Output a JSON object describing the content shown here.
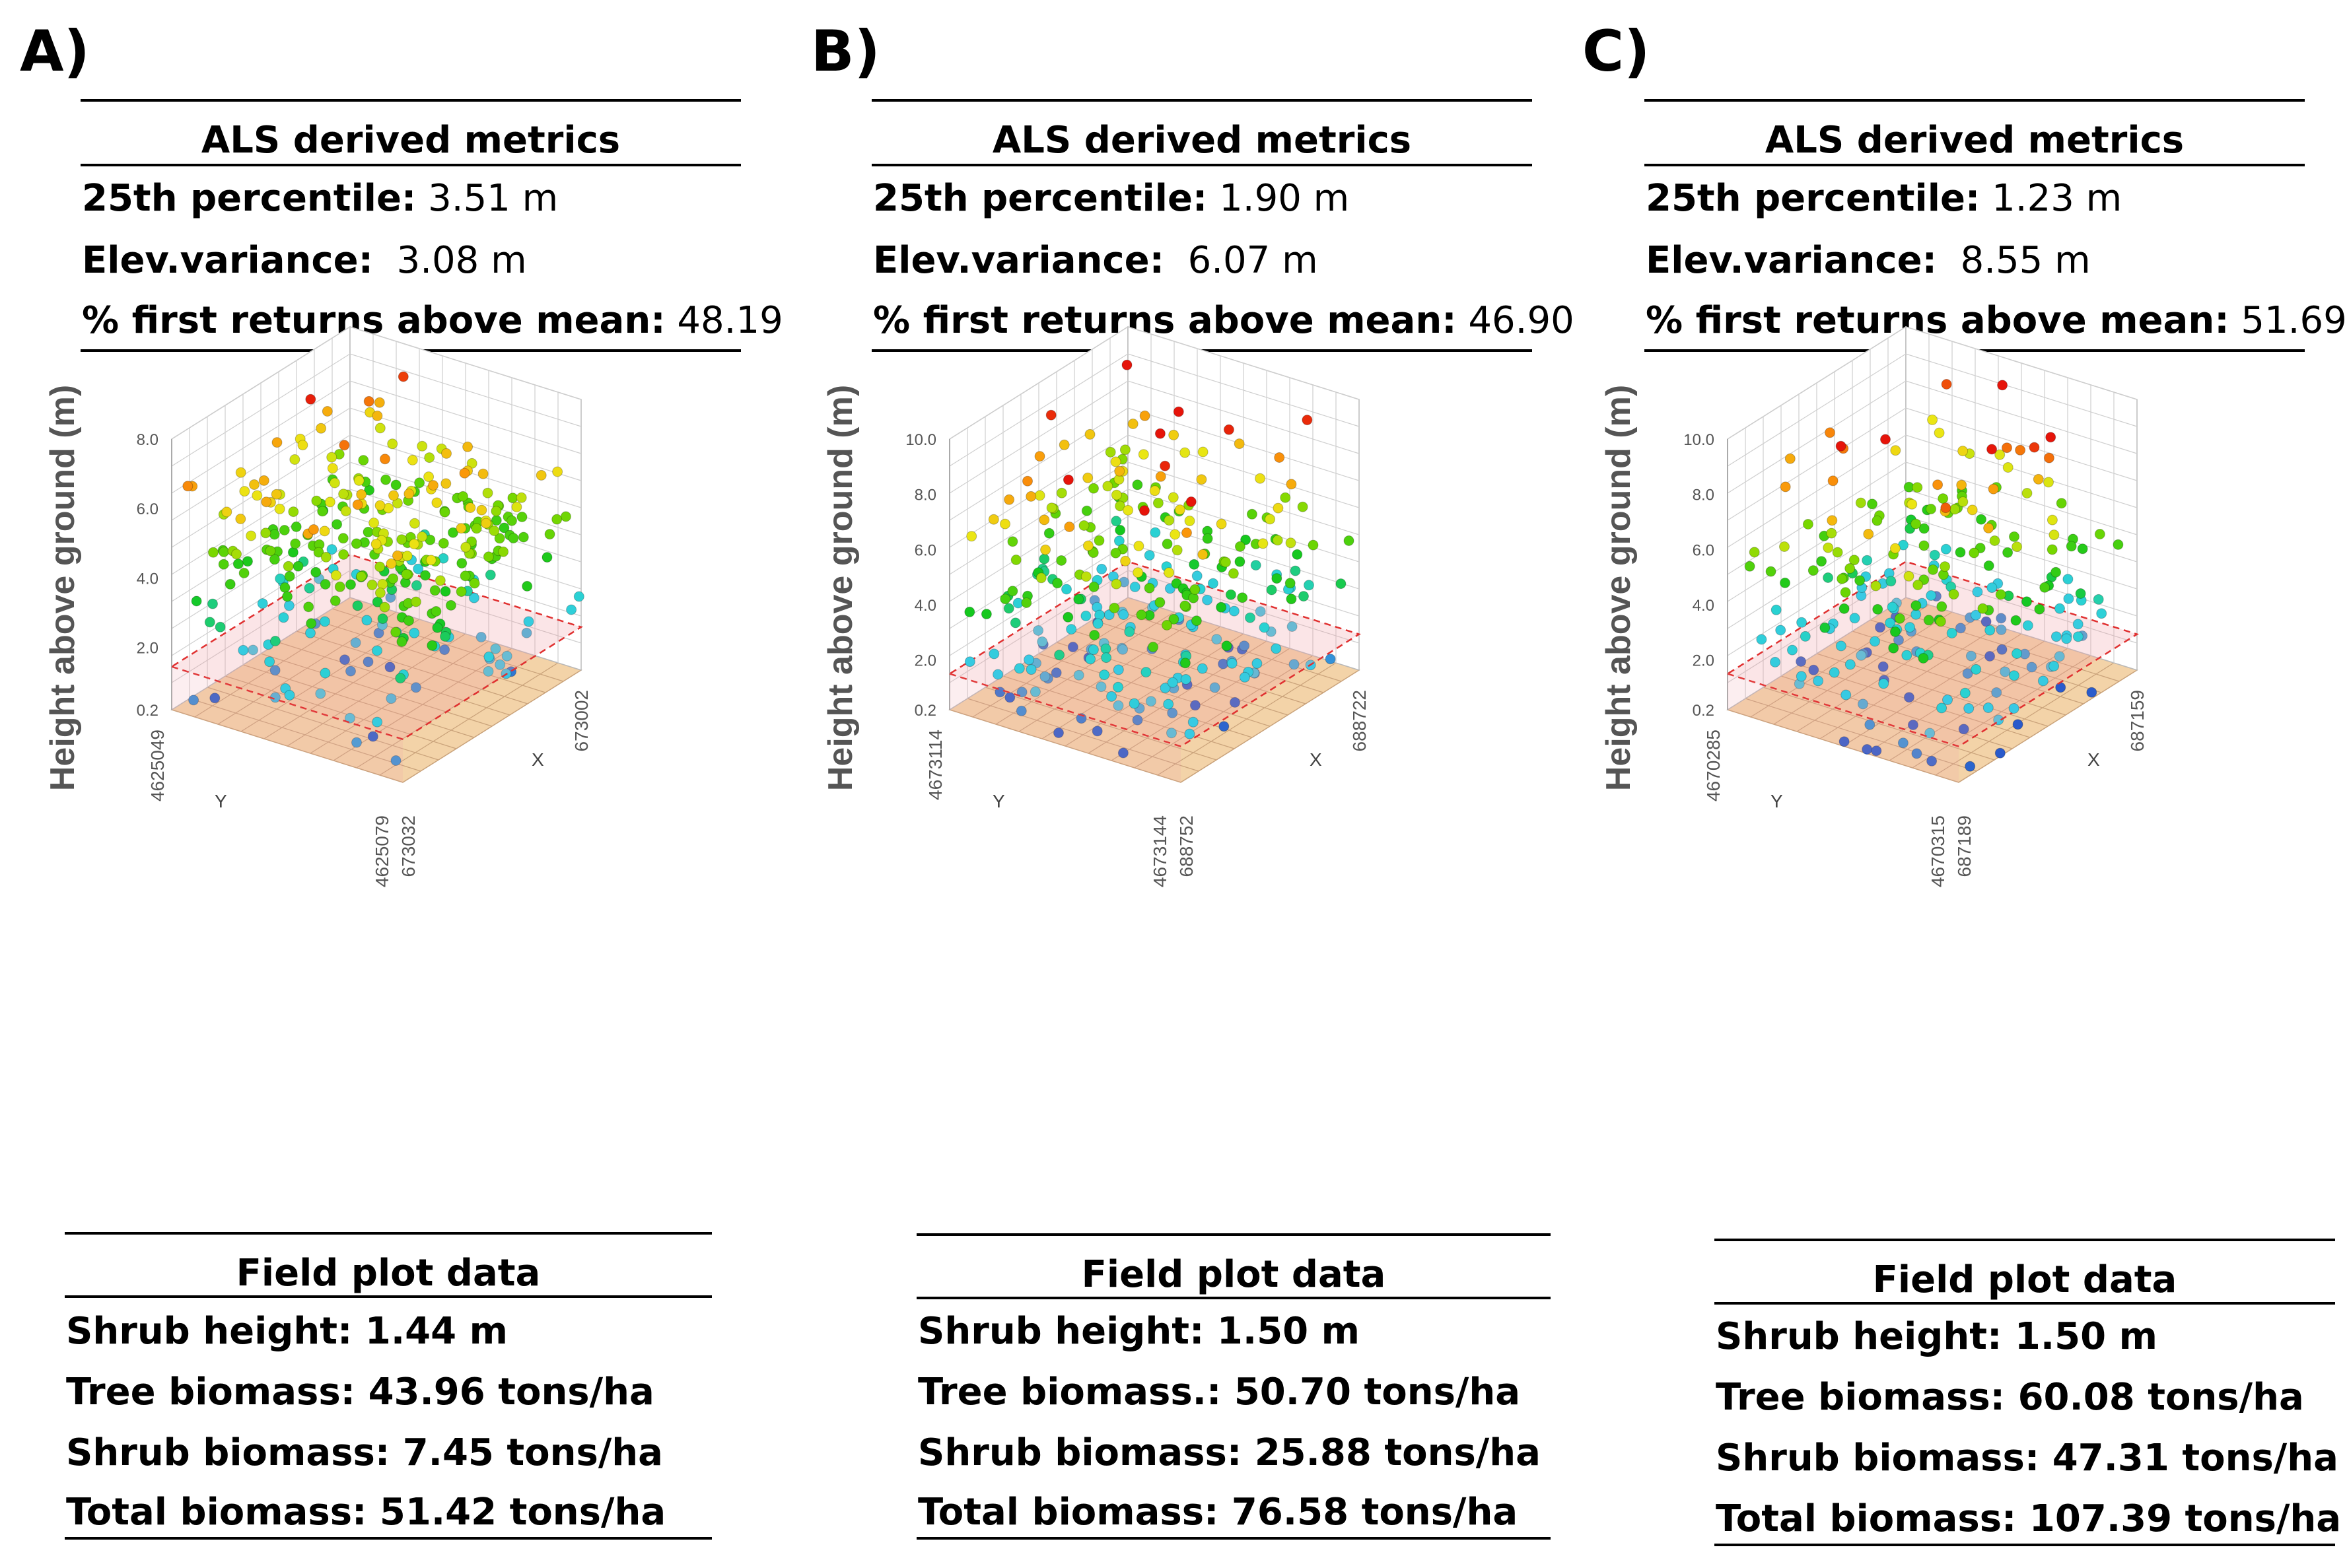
{
  "panels": [
    {
      "letter": "A)",
      "metrics": {
        "title": "ALS derived metrics",
        "p25_label": "25th percentile:",
        "p25_value": "3.51 m",
        "var_label": "Elev.variance:",
        "var_value": "3.08  m",
        "first_label": "% first returns above mean:",
        "first_value": "48.19"
      },
      "field": {
        "title": "Field plot data",
        "lines": [
          "Shrub height: 1.44 m",
          "Tree biomass: 43.96 tons/ha",
          "Shrub biomass: 7.45 tons/ha",
          "Total biomass: 51.42  tons/ha"
        ]
      },
      "chart_data": {
        "type": "scatter3d",
        "zlabel": "Height above ground (m)",
        "xlabel": "X",
        "ylabel": "Y",
        "z_ticks": [
          "0.2",
          "2.0",
          "4.0",
          "6.0",
          "8.0"
        ],
        "z_tick_values": [
          0.2,
          2.0,
          4.0,
          6.0,
          8.0
        ],
        "zlim": [
          0.2,
          8.0
        ],
        "threshold_plane_height": 1.44,
        "y_tick_labels": [
          "4625049",
          "4625079"
        ],
        "x_tick_labels": [
          "673002",
          "673032"
        ],
        "points": {
          "count": 330,
          "z_mean": 4.6,
          "z_sd": 1.1,
          "z_max": 7.9,
          "seed": 11
        }
      }
    },
    {
      "letter": "B)",
      "metrics": {
        "title": "ALS derived metrics",
        "p25_label": "25th percentile:",
        "p25_value": "1.90 m",
        "var_label": "Elev.variance:",
        "var_value": "6.07  m",
        "first_label": "% first returns above mean:",
        "first_value": "46.90"
      },
      "field": {
        "title": "Field plot data",
        "lines": [
          "Shrub height: 1.50 m",
          "Tree biomass.: 50.70  tons/ha",
          "Shrub biomass: 25.88  tons/ha",
          "Total biomass: 76.58  tons/ha"
        ]
      },
      "chart_data": {
        "type": "scatter3d",
        "zlabel": "Height above ground (m)",
        "xlabel": "X",
        "ylabel": "Y",
        "z_ticks": [
          "0.2",
          "2.0",
          "4.0",
          "6.0",
          "8.0",
          "10.0"
        ],
        "z_tick_values": [
          0.2,
          2.0,
          4.0,
          6.0,
          8.0,
          10.0
        ],
        "zlim": [
          0.2,
          10.0
        ],
        "threshold_plane_height": 1.5,
        "y_tick_labels": [
          "4673114",
          "4673144"
        ],
        "x_tick_labels": [
          "688722",
          "688752"
        ],
        "points": {
          "count": 300,
          "z_mean": 4.6,
          "z_sd": 2.2,
          "z_max": 9.4,
          "seed": 23
        }
      }
    },
    {
      "letter": "C)",
      "metrics": {
        "title": "ALS derived metrics",
        "p25_label": "25th percentile:",
        "p25_value": "1.23 m",
        "var_label": "Elev.variance:",
        "var_value": "8.55  m",
        "first_label": "% first returns above mean:",
        "first_value": "51.69"
      },
      "field": {
        "title": "Field plot data",
        "lines": [
          "Shrub height: 1.50 m",
          "Tree biomass: 60.08 tons/ha",
          "Shrub biomass: 47.31  tons/ha",
          "Total biomass: 107.39  tons/ha"
        ]
      },
      "chart_data": {
        "type": "scatter3d",
        "zlabel": "Height above ground (m)",
        "xlabel": "X",
        "ylabel": "Y",
        "z_ticks": [
          "0.2",
          "2.0",
          "4.0",
          "6.0",
          "8.0",
          "10.0"
        ],
        "z_tick_values": [
          0.2,
          2.0,
          4.0,
          6.0,
          8.0,
          10.0
        ],
        "zlim": [
          0.2,
          10.0
        ],
        "threshold_plane_height": 1.5,
        "y_tick_labels": [
          "4670285",
          "4670315"
        ],
        "x_tick_labels": [
          "687159",
          "687189"
        ],
        "points": {
          "count": 250,
          "z_mean": 4.5,
          "z_sd": 2.7,
          "z_max": 9.9,
          "seed": 37
        }
      }
    }
  ]
}
